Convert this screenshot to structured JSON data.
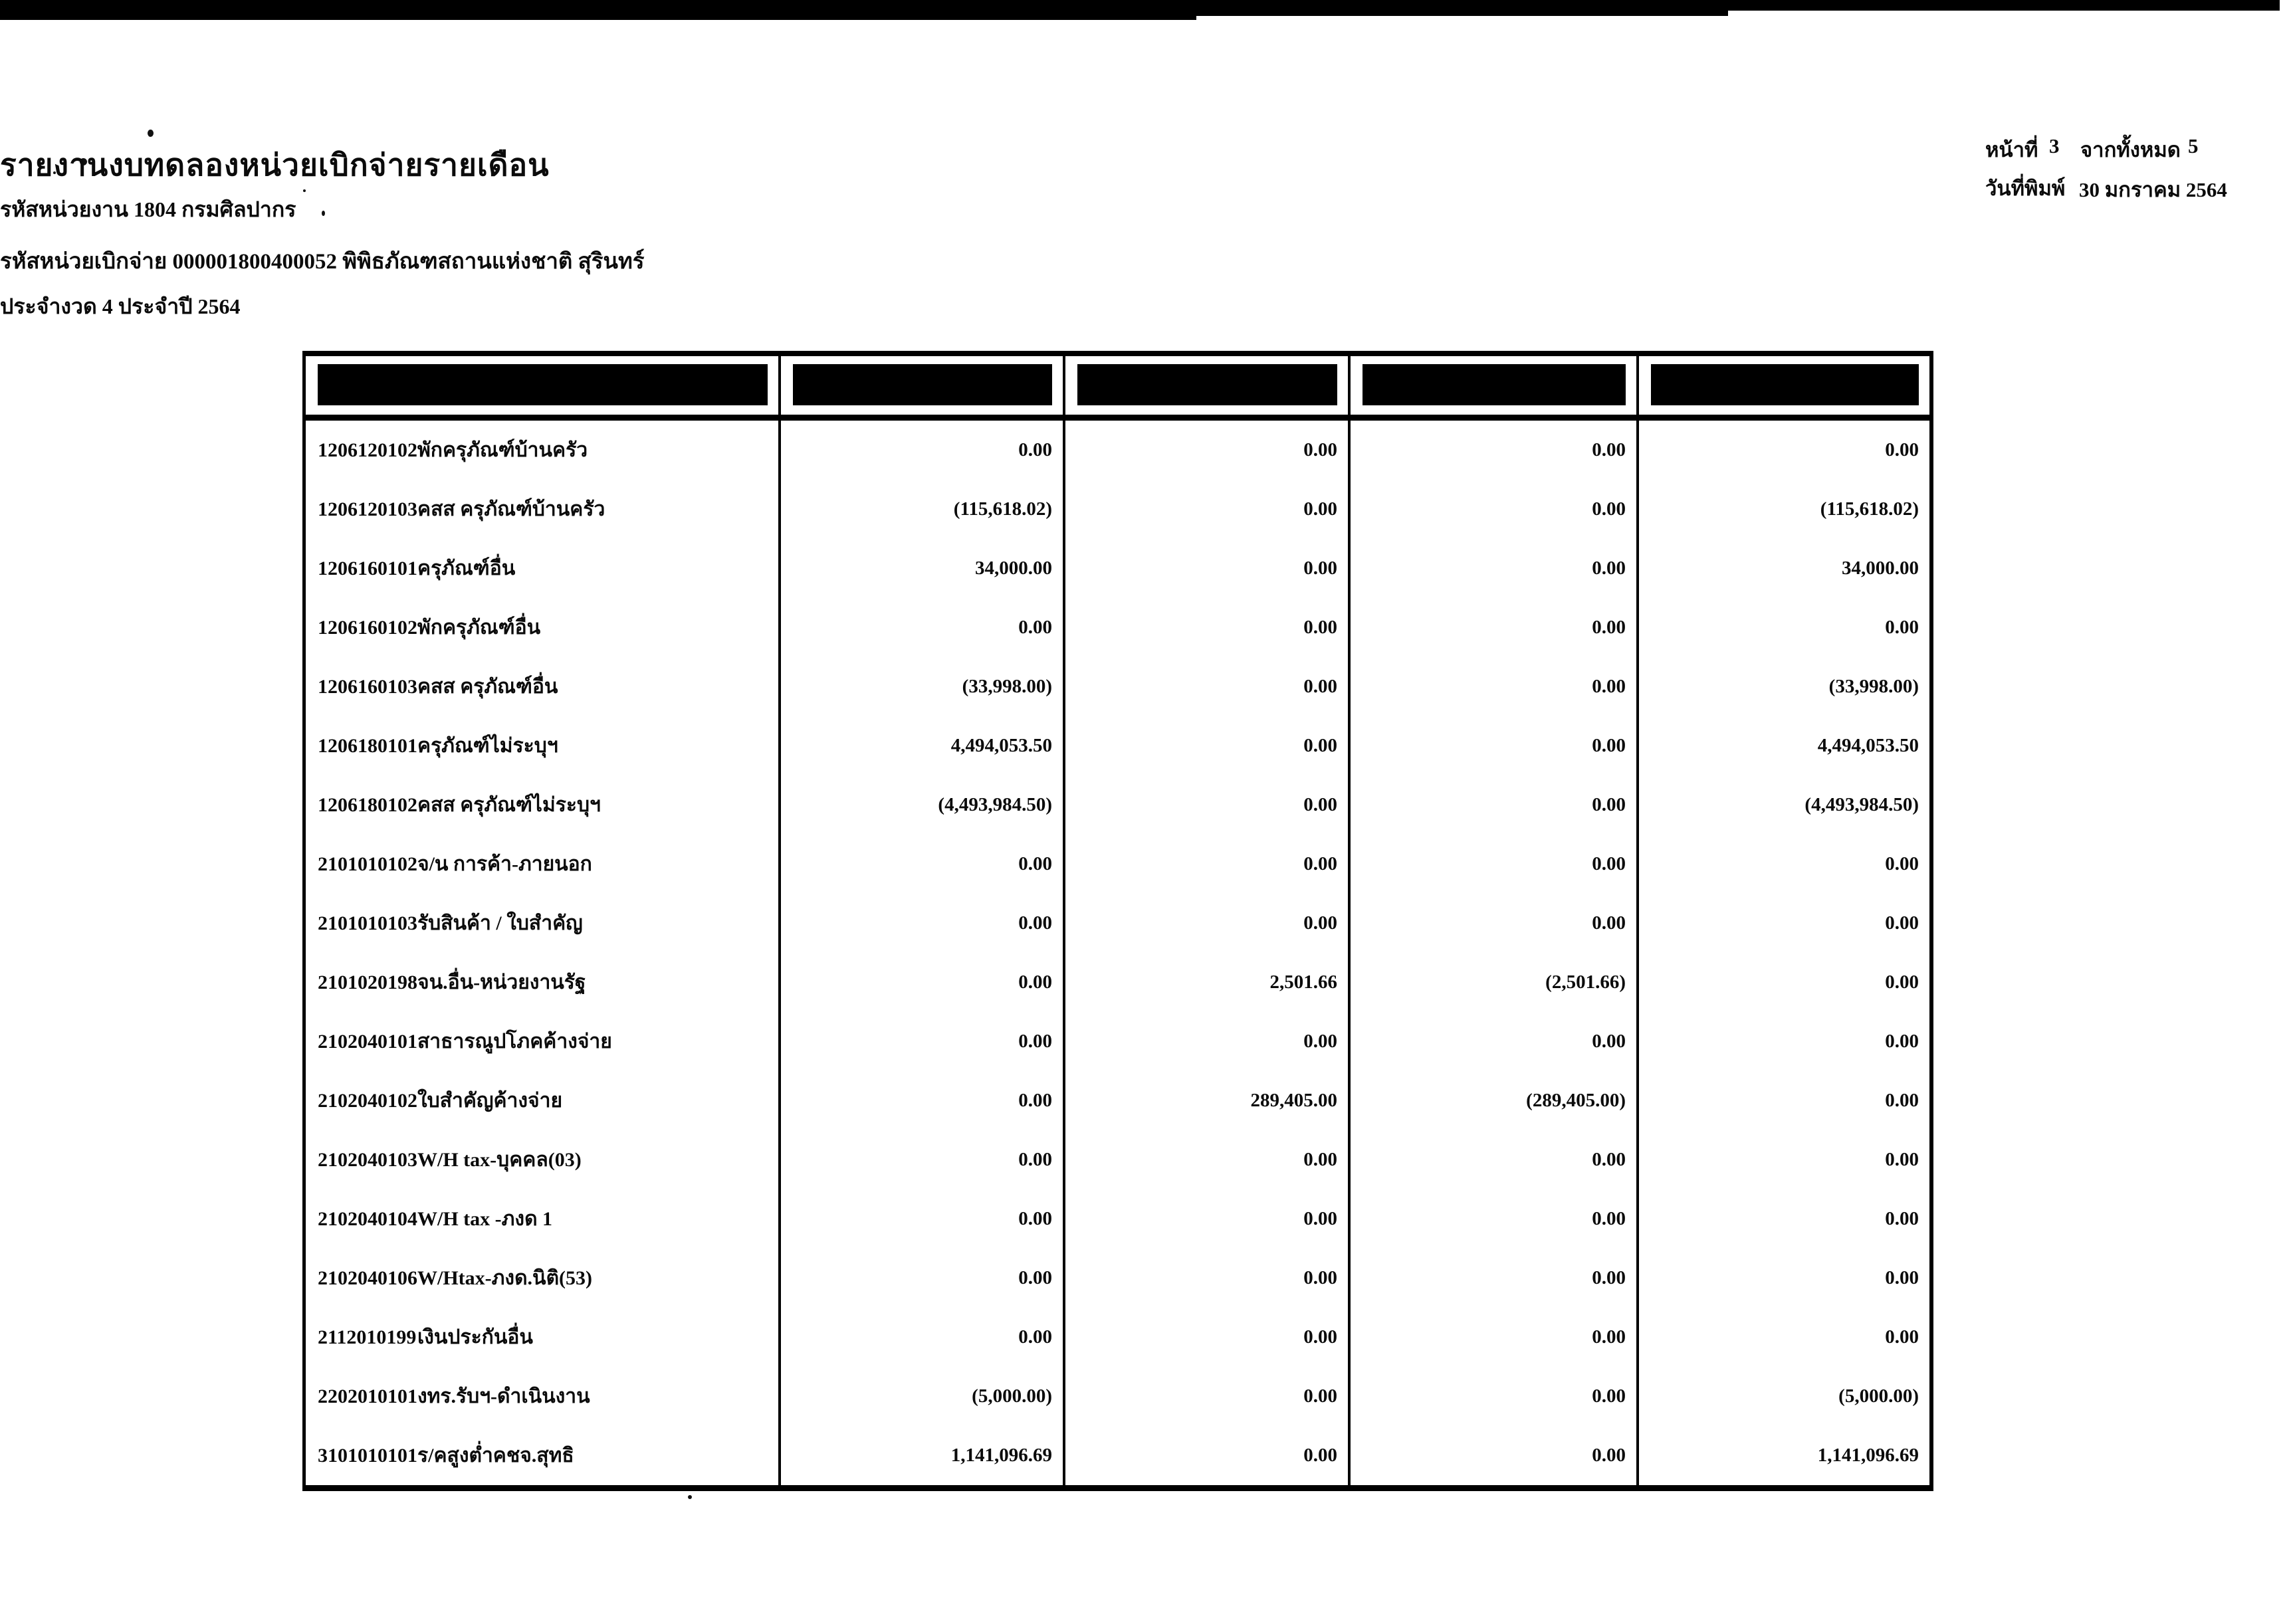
{
  "page": {
    "title": "รายงานงบทดลองหน่วยเบิกจ่ายรายเดือน",
    "subtitle_agency": "รหัสหน่วยงาน 1804 กรมศิลปากร",
    "subtitle_unit": "รหัสหน่วยเบิกจ่าย 000001800400052 พิพิธภัณฑสถานแห่งชาติ สุรินทร์",
    "subtitle_period": "ประจำงวด 4 ประจำปี 2564",
    "page_label": "หน้าที่",
    "page_number": "3",
    "of_label": "จากทั้งหมด",
    "total_pages": "5",
    "print_date_label": "วันที่พิมพ์",
    "print_date": "30 มกราคม 2564"
  },
  "table": {
    "headers_redacted": [
      "",
      "",
      "",
      "",
      ""
    ],
    "rows": [
      {
        "code": "1206120102",
        "name": "พักครุภัณฑ์บ้านครัว",
        "values": [
          "0.00",
          "0.00",
          "0.00",
          "0.00"
        ]
      },
      {
        "code": "1206120103",
        "name": "คสส ครุภัณฑ์บ้านครัว",
        "values": [
          "(115,618.02)",
          "0.00",
          "0.00",
          "(115,618.02)"
        ]
      },
      {
        "code": "1206160101",
        "name": "ครุภัณฑ์อื่น",
        "values": [
          "34,000.00",
          "0.00",
          "0.00",
          "34,000.00"
        ]
      },
      {
        "code": "1206160102",
        "name": "พักครุภัณฑ์อื่น",
        "values": [
          "0.00",
          "0.00",
          "0.00",
          "0.00"
        ]
      },
      {
        "code": "1206160103",
        "name": "คสส ครุภัณฑ์อื่น",
        "values": [
          "(33,998.00)",
          "0.00",
          "0.00",
          "(33,998.00)"
        ]
      },
      {
        "code": "1206180101",
        "name": "ครุภัณฑ์ไม่ระบุฯ",
        "values": [
          "4,494,053.50",
          "0.00",
          "0.00",
          "4,494,053.50"
        ]
      },
      {
        "code": "1206180102",
        "name": "คสส ครุภัณฑ์ไม่ระบุฯ",
        "values": [
          "(4,493,984.50)",
          "0.00",
          "0.00",
          "(4,493,984.50)"
        ]
      },
      {
        "code": "2101010102",
        "name": "จ/น การค้า-ภายนอก",
        "values": [
          "0.00",
          "0.00",
          "0.00",
          "0.00"
        ]
      },
      {
        "code": "2101010103",
        "name": "รับสินค้า / ใบสำคัญ",
        "values": [
          "0.00",
          "0.00",
          "0.00",
          "0.00"
        ]
      },
      {
        "code": "2101020198",
        "name": "จน.อื่น-หน่วยงานรัฐ",
        "values": [
          "0.00",
          "2,501.66",
          "(2,501.66)",
          "0.00"
        ]
      },
      {
        "code": "2102040101",
        "name": "สาธารณูปโภคค้างจ่าย",
        "values": [
          "0.00",
          "0.00",
          "0.00",
          "0.00"
        ]
      },
      {
        "code": "2102040102",
        "name": "ใบสำคัญค้างจ่าย",
        "values": [
          "0.00",
          "289,405.00",
          "(289,405.00)",
          "0.00"
        ]
      },
      {
        "code": "2102040103",
        "name": "W/H tax-บุคคล(03)",
        "values": [
          "0.00",
          "0.00",
          "0.00",
          "0.00"
        ]
      },
      {
        "code": "2102040104",
        "name": "W/H tax -ภงด 1",
        "values": [
          "0.00",
          "0.00",
          "0.00",
          "0.00"
        ]
      },
      {
        "code": "2102040106",
        "name": "W/Htax-ภงด.นิติ(53)",
        "values": [
          "0.00",
          "0.00",
          "0.00",
          "0.00"
        ]
      },
      {
        "code": "2112010199",
        "name": "เงินประกันอื่น",
        "values": [
          "0.00",
          "0.00",
          "0.00",
          "0.00"
        ]
      },
      {
        "code": "2202010101",
        "name": "งทร.รับฯ-ดำเนินงาน",
        "values": [
          "(5,000.00)",
          "0.00",
          "0.00",
          "(5,000.00)"
        ]
      },
      {
        "code": "3101010101",
        "name": "ร/คสูงต่ำคชจ.สุทธิ",
        "values": [
          "1,141,096.69",
          "0.00",
          "0.00",
          "1,141,096.69"
        ]
      }
    ]
  }
}
